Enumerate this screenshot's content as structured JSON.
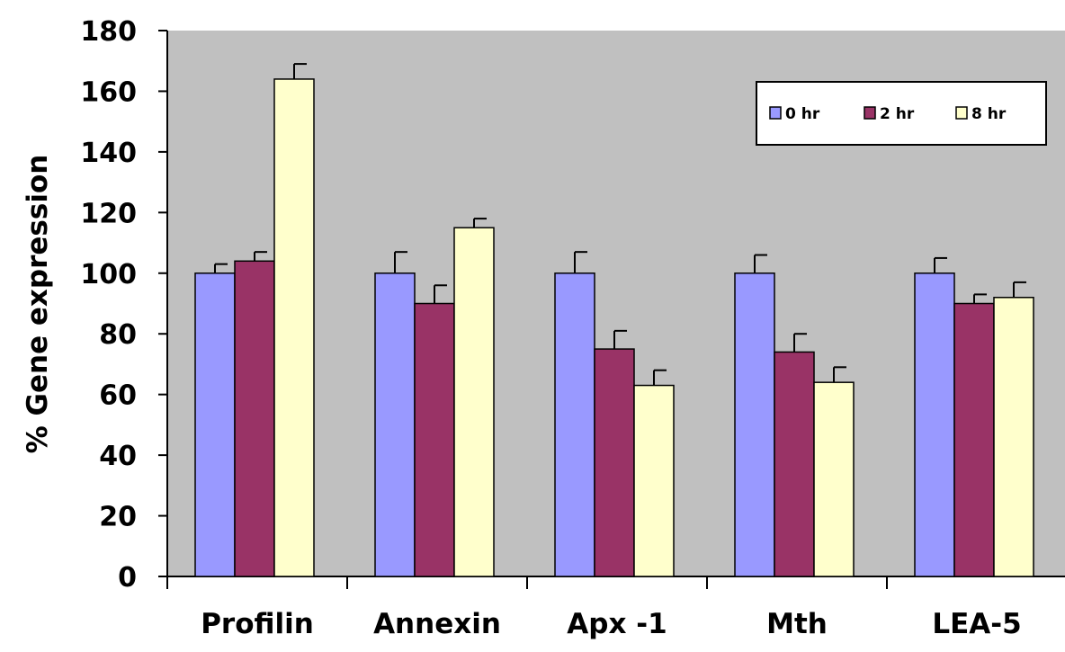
{
  "chart_data": {
    "type": "bar",
    "title": "",
    "xlabel": "",
    "ylabel": "% Gene expression",
    "ylim": [
      0,
      180
    ],
    "yticks": [
      0,
      20,
      40,
      60,
      80,
      100,
      120,
      140,
      160,
      180
    ],
    "categories": [
      "Profilin",
      "Annexin",
      "Apx -1",
      "Mth",
      "LEA-5"
    ],
    "series": [
      {
        "name": "0 hr",
        "color": "#9999ff",
        "values": [
          100,
          100,
          100,
          100,
          100
        ],
        "errors": [
          3,
          7,
          7,
          6,
          5
        ]
      },
      {
        "name": "2 hr",
        "color": "#993366",
        "values": [
          104,
          90,
          75,
          74,
          90
        ],
        "errors": [
          3,
          6,
          6,
          6,
          3
        ]
      },
      {
        "name": "8 hr",
        "color": "#ffffcc",
        "values": [
          164,
          115,
          63,
          64,
          92
        ],
        "errors": [
          5,
          3,
          5,
          5,
          5
        ]
      }
    ],
    "grid": false,
    "plot_background": "#c0c0c0",
    "legend_position": "top-right",
    "error_bars": true
  }
}
